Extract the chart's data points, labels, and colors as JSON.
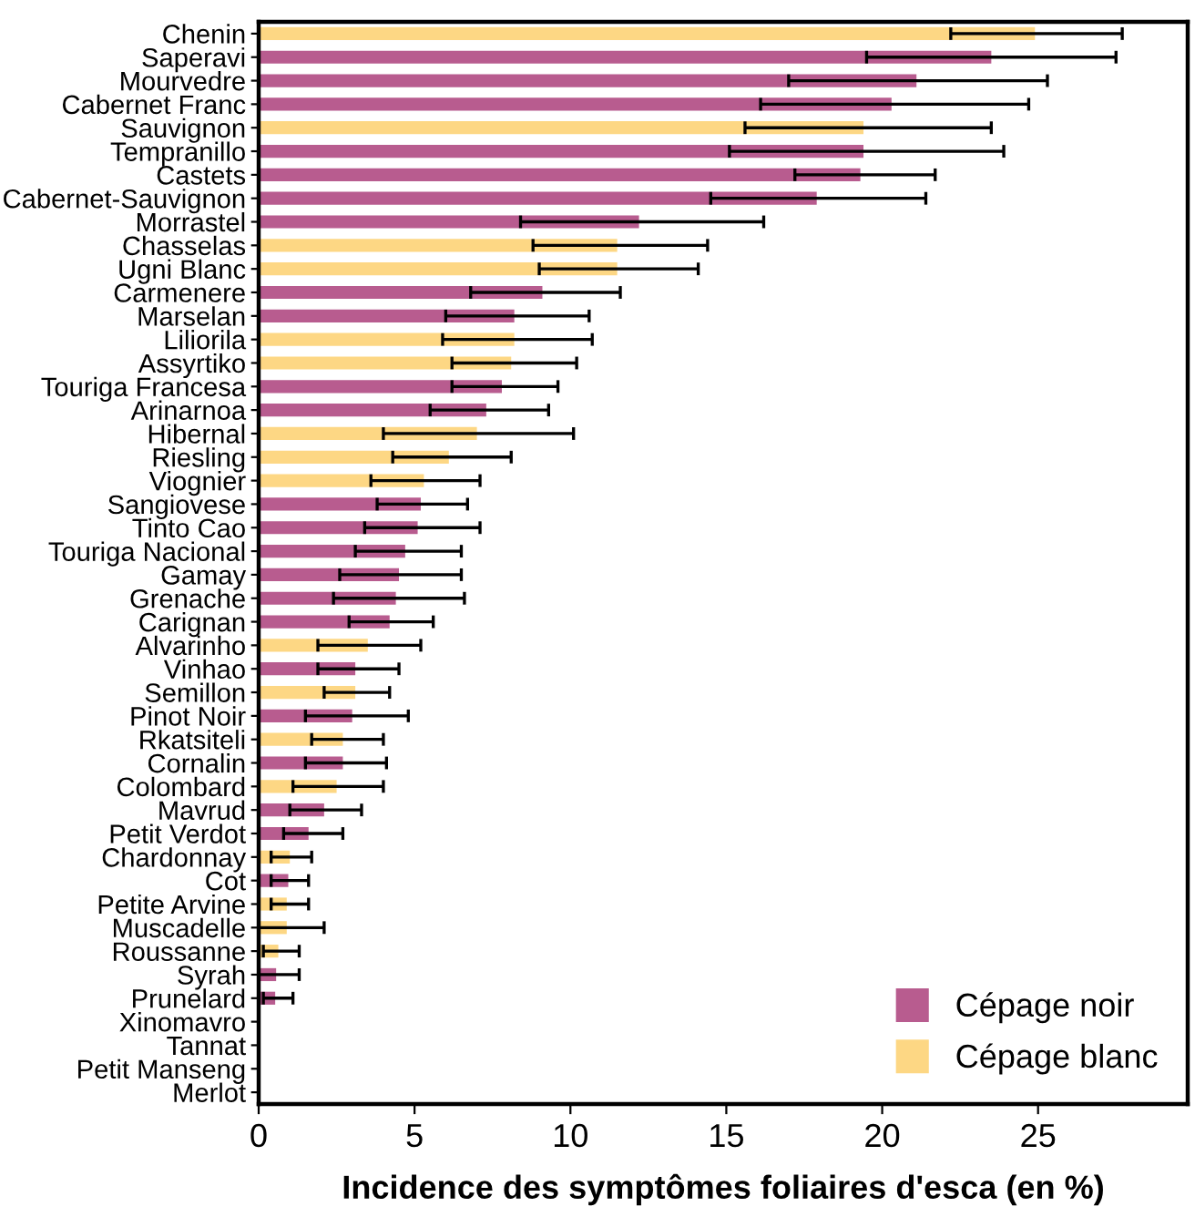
{
  "chart_data": {
    "type": "bar",
    "orientation": "horizontal",
    "xlabel": "Incidence des symptômes foliaires d'esca (en %)",
    "categories": [
      "Chenin",
      "Saperavi",
      "Mourvedre",
      "Cabernet Franc",
      "Sauvignon",
      "Tempranillo",
      "Castets",
      "Cabernet-Sauvignon",
      "Morrastel",
      "Chasselas",
      "Ugni Blanc",
      "Carmenere",
      "Marselan",
      "Liliorila",
      "Assyrtiko",
      "Touriga Francesa",
      "Arinarnoa",
      "Hibernal",
      "Riesling",
      "Viognier",
      "Sangiovese",
      "Tinto Cao",
      "Touriga Nacional",
      "Gamay",
      "Grenache",
      "Carignan",
      "Alvarinho",
      "Vinhao",
      "Semillon",
      "Pinot Noir",
      "Rkatsiteli",
      "Cornalin",
      "Colombard",
      "Mavrud",
      "Petit Verdot",
      "Chardonnay",
      "Cot",
      "Petite Arvine",
      "Muscadelle",
      "Roussanne",
      "Syrah",
      "Prunelard",
      "Xinomavro",
      "Tannat",
      "Petit Manseng",
      "Merlot"
    ],
    "series": [
      {
        "name": "Cépage noir",
        "color": "#b85c8f",
        "values": [
          null,
          23.5,
          21.1,
          20.3,
          null,
          19.4,
          19.3,
          17.9,
          12.2,
          null,
          null,
          9.1,
          8.2,
          null,
          null,
          7.8,
          7.3,
          null,
          null,
          null,
          5.2,
          5.1,
          4.7,
          4.5,
          4.4,
          4.2,
          null,
          3.1,
          null,
          3.0,
          null,
          2.7,
          null,
          2.1,
          1.6,
          null,
          0.95,
          null,
          null,
          null,
          0.56,
          0.53,
          0,
          0,
          null,
          0
        ],
        "errors": [
          null,
          [
            19.5,
            27.5
          ],
          [
            17.0,
            25.3
          ],
          [
            16.1,
            24.7
          ],
          null,
          [
            15.1,
            23.9
          ],
          [
            17.2,
            21.7
          ],
          [
            14.5,
            21.4
          ],
          [
            8.4,
            16.2
          ],
          null,
          null,
          [
            6.8,
            11.6
          ],
          [
            6.0,
            10.6
          ],
          null,
          null,
          [
            6.2,
            9.6
          ],
          [
            5.5,
            9.3
          ],
          null,
          null,
          null,
          [
            3.8,
            6.7
          ],
          [
            3.4,
            7.1
          ],
          [
            3.1,
            6.5
          ],
          [
            2.6,
            6.5
          ],
          [
            2.4,
            6.6
          ],
          [
            2.9,
            5.6
          ],
          null,
          [
            1.9,
            4.5
          ],
          null,
          [
            1.5,
            4.8
          ],
          null,
          [
            1.5,
            4.1
          ],
          null,
          [
            1.0,
            3.3
          ],
          [
            0.8,
            2.7
          ],
          null,
          [
            0.4,
            1.6
          ],
          null,
          null,
          null,
          [
            0,
            1.3
          ],
          [
            0.15,
            1.1
          ],
          null,
          null,
          null,
          null
        ]
      },
      {
        "name": "Cépage blanc",
        "color": "#fdd784",
        "values": [
          24.9,
          null,
          null,
          null,
          19.4,
          null,
          null,
          null,
          null,
          11.5,
          11.5,
          null,
          null,
          8.2,
          8.1,
          null,
          null,
          7.0,
          6.1,
          5.3,
          null,
          null,
          null,
          null,
          null,
          null,
          3.5,
          null,
          3.1,
          null,
          2.7,
          null,
          2.5,
          null,
          null,
          1.0,
          null,
          0.9,
          0.9,
          0.63,
          null,
          null,
          null,
          null,
          0,
          null
        ],
        "errors": [
          [
            22.2,
            27.7
          ],
          null,
          null,
          null,
          [
            15.6,
            23.5
          ],
          null,
          null,
          null,
          null,
          [
            8.8,
            14.4
          ],
          [
            9.0,
            14.1
          ],
          null,
          null,
          [
            5.9,
            10.7
          ],
          [
            6.2,
            10.2
          ],
          null,
          null,
          [
            4.0,
            10.1
          ],
          [
            4.3,
            8.1
          ],
          [
            3.6,
            7.1
          ],
          null,
          null,
          null,
          null,
          null,
          null,
          [
            1.9,
            5.2
          ],
          null,
          [
            2.1,
            4.2
          ],
          null,
          [
            1.7,
            4.0
          ],
          null,
          [
            1.1,
            4.0
          ],
          null,
          null,
          [
            0.4,
            1.7
          ],
          null,
          [
            0.4,
            1.6
          ],
          [
            0,
            2.1
          ],
          [
            0.15,
            1.3
          ],
          null,
          null,
          null,
          null,
          null,
          null
        ]
      }
    ],
    "xlim": [
      0,
      29.8
    ],
    "xticks": [
      0,
      5,
      10,
      15,
      20,
      25
    ],
    "grid": false,
    "legend": "bottom right"
  }
}
